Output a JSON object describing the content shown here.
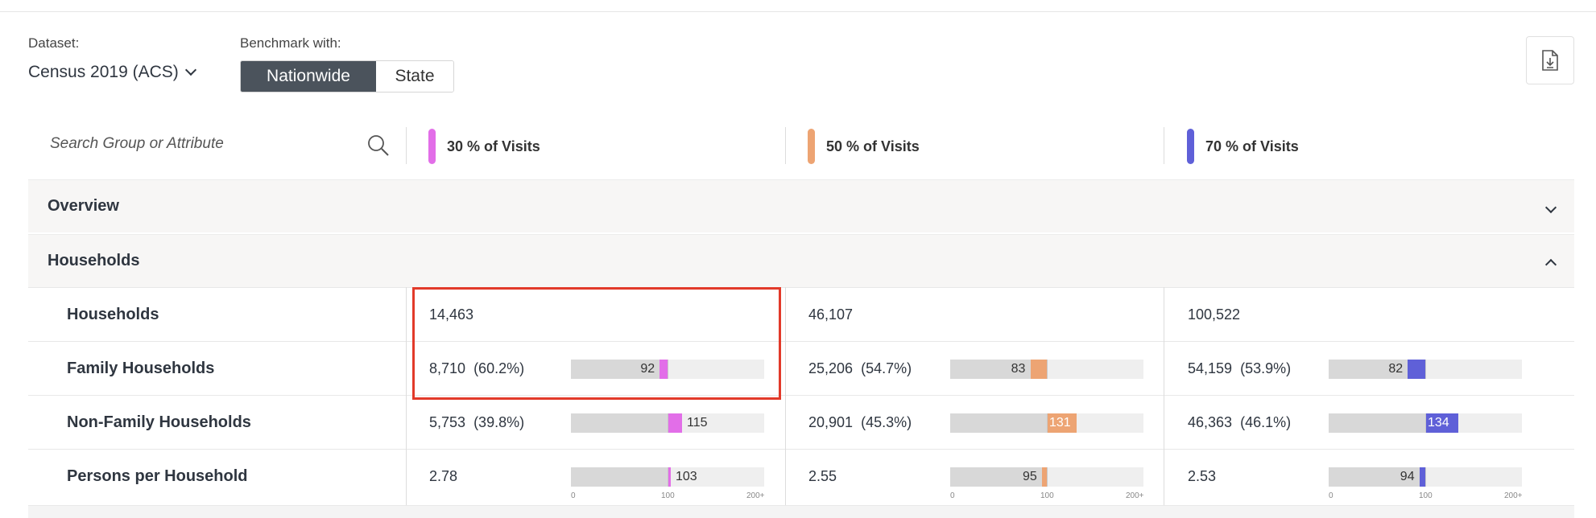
{
  "controls": {
    "dataset_label": "Dataset:",
    "dataset_value": "Census 2019 (ACS)",
    "benchmark_label": "Benchmark with:",
    "benchmark_options": [
      "Nationwide",
      "State"
    ],
    "benchmark_selected": "Nationwide"
  },
  "search": {
    "placeholder": "Search Group or Attribute"
  },
  "columns": [
    {
      "label": "30 % of Visits",
      "color": "#e26ee8"
    },
    {
      "label": "50 % of Visits",
      "color": "#eda473"
    },
    {
      "label": "70 % of Visits",
      "color": "#5f60d8"
    }
  ],
  "sections": {
    "overview": {
      "title": "Overview",
      "state": "collapsed"
    },
    "households": {
      "title": "Households",
      "state": "expanded"
    }
  },
  "rows": {
    "households": {
      "name": "Households",
      "values": [
        "14,463",
        "46,107",
        "100,522"
      ]
    },
    "family": {
      "name": "Family Households",
      "values": [
        "8,710",
        "25,206",
        "54,159"
      ],
      "pcts": [
        "(60.2%)",
        "(54.7%)",
        "(53.9%)"
      ],
      "index": [
        "92",
        "83",
        "82"
      ]
    },
    "nonfamily": {
      "name": "Non-Family Households",
      "values": [
        "5,753",
        "20,901",
        "46,363"
      ],
      "pcts": [
        "(39.8%)",
        "(45.3%)",
        "(46.1%)"
      ],
      "index": [
        "115",
        "131",
        "134"
      ]
    },
    "persons": {
      "name": "Persons per Household",
      "values": [
        "2.78",
        "2.55",
        "2.53"
      ],
      "index": [
        "103",
        "95",
        "94"
      ]
    }
  },
  "axis_ticks": [
    "0",
    "100",
    "200+"
  ],
  "chart_data": {
    "type": "bar",
    "index_scale": [
      0,
      200
    ],
    "baseline": 100,
    "categories": [
      "Family Households",
      "Non-Family Households",
      "Persons per Household"
    ],
    "series": [
      {
        "name": "30 % of Visits",
        "values": [
          92,
          115,
          103
        ]
      },
      {
        "name": "50 % of Visits",
        "values": [
          83,
          131,
          95
        ]
      },
      {
        "name": "70 % of Visits",
        "values": [
          82,
          134,
          94
        ]
      }
    ]
  }
}
